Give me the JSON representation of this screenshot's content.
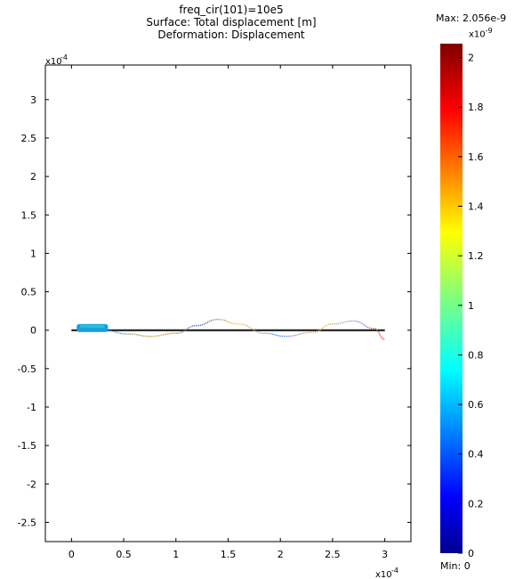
{
  "title": {
    "line1": "freq_cir(101)=10e5",
    "line2": "Surface: Total displacement [m]",
    "line3": "Deformation: Displacement"
  },
  "colorbar": {
    "max_label": "Max: 2.056e-9",
    "min_label": "Min: 0",
    "exponent_label": "x10",
    "exponent_power": "-9",
    "range": [
      0,
      2.056
    ],
    "ticks": [
      "0",
      "0.2",
      "0.4",
      "0.6",
      "0.8",
      "1",
      "1.2",
      "1.4",
      "1.6",
      "1.8",
      "2"
    ],
    "colormap": "jet"
  },
  "chart_data": {
    "type": "surface-deformation",
    "title": "freq_cir(101)=10e5\nSurface: Total displacement [m]\nDeformation: Displacement",
    "x_multiplier_label": "x10",
    "x_multiplier_power": "-4",
    "y_multiplier_label": "x10",
    "y_multiplier_power": "-4",
    "xlim": [
      -0.25,
      3.25
    ],
    "ylim": [
      -2.75,
      3.45
    ],
    "x_ticks": [
      "0",
      "0.5",
      "1",
      "1.5",
      "2",
      "2.5",
      "3"
    ],
    "y_ticks": [
      "3",
      "2.5",
      "2",
      "1.5",
      "1",
      "0.5",
      "0",
      "-0.5",
      "-1",
      "-1.5",
      "-2",
      "-2.5"
    ],
    "undeformed_line": {
      "x": [
        0,
        3
      ],
      "y": [
        0,
        0
      ]
    },
    "deformed_wave": {
      "x": [
        0.3,
        0.55,
        0.75,
        1.0,
        1.2,
        1.4,
        1.6,
        1.85,
        2.05,
        2.3,
        2.5,
        2.7,
        2.9,
        3.0
      ],
      "y": [
        0.0,
        -0.05,
        -0.08,
        -0.04,
        0.06,
        0.14,
        0.08,
        -0.04,
        -0.08,
        -0.03,
        0.08,
        0.12,
        0.02,
        -0.12
      ]
    },
    "source_blob": {
      "x": [
        0.05,
        0.35
      ],
      "y": [
        0.0,
        0.08
      ]
    },
    "grid": false
  }
}
